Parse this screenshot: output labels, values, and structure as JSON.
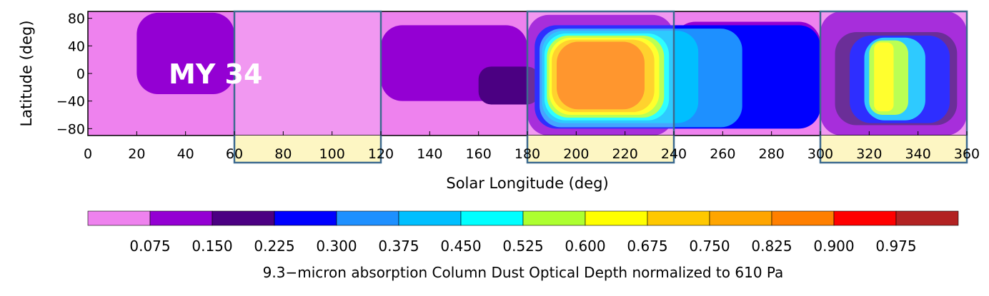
{
  "chart_data": {
    "type": "heatmap",
    "title": "",
    "xlabel": "Solar Longitude (deg)",
    "ylabel": "Latitude (deg)",
    "xlim": [
      0,
      360
    ],
    "ylim": [
      -90,
      90
    ],
    "x_ticks": [
      "0",
      "20",
      "40",
      "60",
      "80",
      "100",
      "120",
      "140",
      "160",
      "180",
      "200",
      "220",
      "240",
      "260",
      "280",
      "300",
      "320",
      "340",
      "360"
    ],
    "y_ticks": [
      "80",
      "40",
      "0",
      "−40",
      "−80"
    ],
    "annotation": "MY 34",
    "highlight_ranges_ls": [
      [
        60,
        120
      ],
      [
        180,
        240
      ],
      [
        300,
        360
      ]
    ],
    "colorbar": {
      "label": "9.3−micron absorption Column Dust Optical Depth normalized to 610 Pa",
      "tick_labels": [
        "0.075",
        "0.150",
        "0.225",
        "0.300",
        "0.375",
        "0.450",
        "0.525",
        "0.600",
        "0.675",
        "0.750",
        "0.825",
        "0.900",
        "0.975"
      ],
      "colors": [
        "#ee82ee",
        "#9400d3",
        "#4b0082",
        "#0000ff",
        "#1e90ff",
        "#00bfff",
        "#00ffff",
        "#adff2f",
        "#ffff00",
        "#ffc800",
        "#ffa500",
        "#ff7f00",
        "#ff0000",
        "#b22222"
      ]
    },
    "regions": [
      {
        "level": 0,
        "ls": [
          0,
          360
        ],
        "lat": [
          -90,
          90
        ]
      },
      {
        "level": 1,
        "ls": [
          20,
          60
        ],
        "lat": [
          -30,
          88
        ]
      },
      {
        "level": 1,
        "ls": [
          120,
          180
        ],
        "lat": [
          -40,
          70
        ]
      },
      {
        "level": 1,
        "ls": [
          180,
          240
        ],
        "lat": [
          -90,
          85
        ]
      },
      {
        "level": 1,
        "ls": [
          240,
          300
        ],
        "lat": [
          -65,
          75
        ]
      },
      {
        "level": 1,
        "ls": [
          300,
          360
        ],
        "lat": [
          -90,
          90
        ]
      },
      {
        "level": 2,
        "ls": [
          160,
          185
        ],
        "lat": [
          -45,
          10
        ]
      },
      {
        "level": 2,
        "ls": [
          285,
          300
        ],
        "lat": [
          -25,
          5
        ]
      },
      {
        "level": 3,
        "ls": [
          183,
          300
        ],
        "lat": [
          -80,
          70
        ]
      },
      {
        "level": 4,
        "ls": [
          185,
          268
        ],
        "lat": [
          -78,
          65
        ]
      },
      {
        "level": 5,
        "ls": [
          186,
          250
        ],
        "lat": [
          -72,
          62
        ]
      },
      {
        "level": 6,
        "ls": [
          187,
          238
        ],
        "lat": [
          -68,
          58
        ]
      },
      {
        "level": 7,
        "ls": [
          188,
          236
        ],
        "lat": [
          -64,
          55
        ]
      },
      {
        "level": 8,
        "ls": [
          189,
          234
        ],
        "lat": [
          -60,
          52
        ]
      },
      {
        "level": 9,
        "ls": [
          190,
          232
        ],
        "lat": [
          -56,
          49
        ]
      },
      {
        "level": 11,
        "ls": [
          192,
          228
        ],
        "lat": [
          -52,
          46
        ]
      },
      {
        "level": 2,
        "ls": [
          306,
          356
        ],
        "lat": [
          -75,
          60
        ]
      },
      {
        "level": 3,
        "ls": [
          312,
          353
        ],
        "lat": [
          -72,
          55
        ]
      },
      {
        "level": 5,
        "ls": [
          318,
          343
        ],
        "lat": [
          -68,
          52
        ]
      },
      {
        "level": 7,
        "ls": [
          320,
          336
        ],
        "lat": [
          -60,
          48
        ]
      },
      {
        "level": 8,
        "ls": [
          322,
          330
        ],
        "lat": [
          -55,
          45
        ]
      }
    ]
  }
}
